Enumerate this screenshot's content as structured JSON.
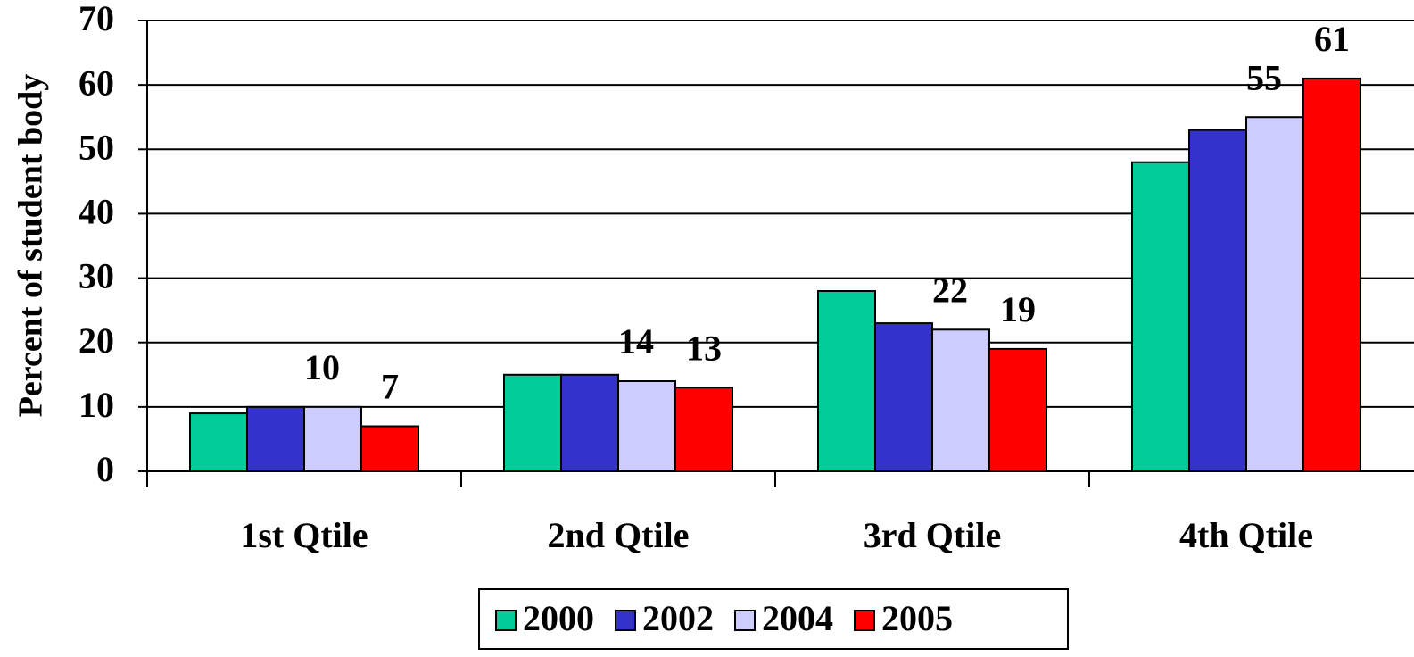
{
  "chart_data": {
    "type": "bar",
    "y_label": "Percent of student body",
    "categories": [
      "1st Qtile",
      "2nd Qtile",
      "3rd Qtile",
      "4th Qtile"
    ],
    "series": [
      {
        "name": "2000",
        "color": "#00cc99",
        "values": [
          9,
          15,
          28,
          48
        ],
        "data_labels": false
      },
      {
        "name": "2002",
        "color": "#3333cc",
        "values": [
          10,
          15,
          23,
          53
        ],
        "data_labels": false
      },
      {
        "name": "2004",
        "color": "#ccccff",
        "values": [
          10,
          14,
          22,
          55
        ],
        "data_labels": true
      },
      {
        "name": "2005",
        "color": "#ff0000",
        "values": [
          7,
          13,
          19,
          61
        ],
        "data_labels": true
      }
    ],
    "ylim": [
      0,
      70
    ],
    "yticks": [
      0,
      10,
      20,
      30,
      40,
      50,
      60,
      70
    ],
    "grid": true,
    "legend": "bottom"
  }
}
